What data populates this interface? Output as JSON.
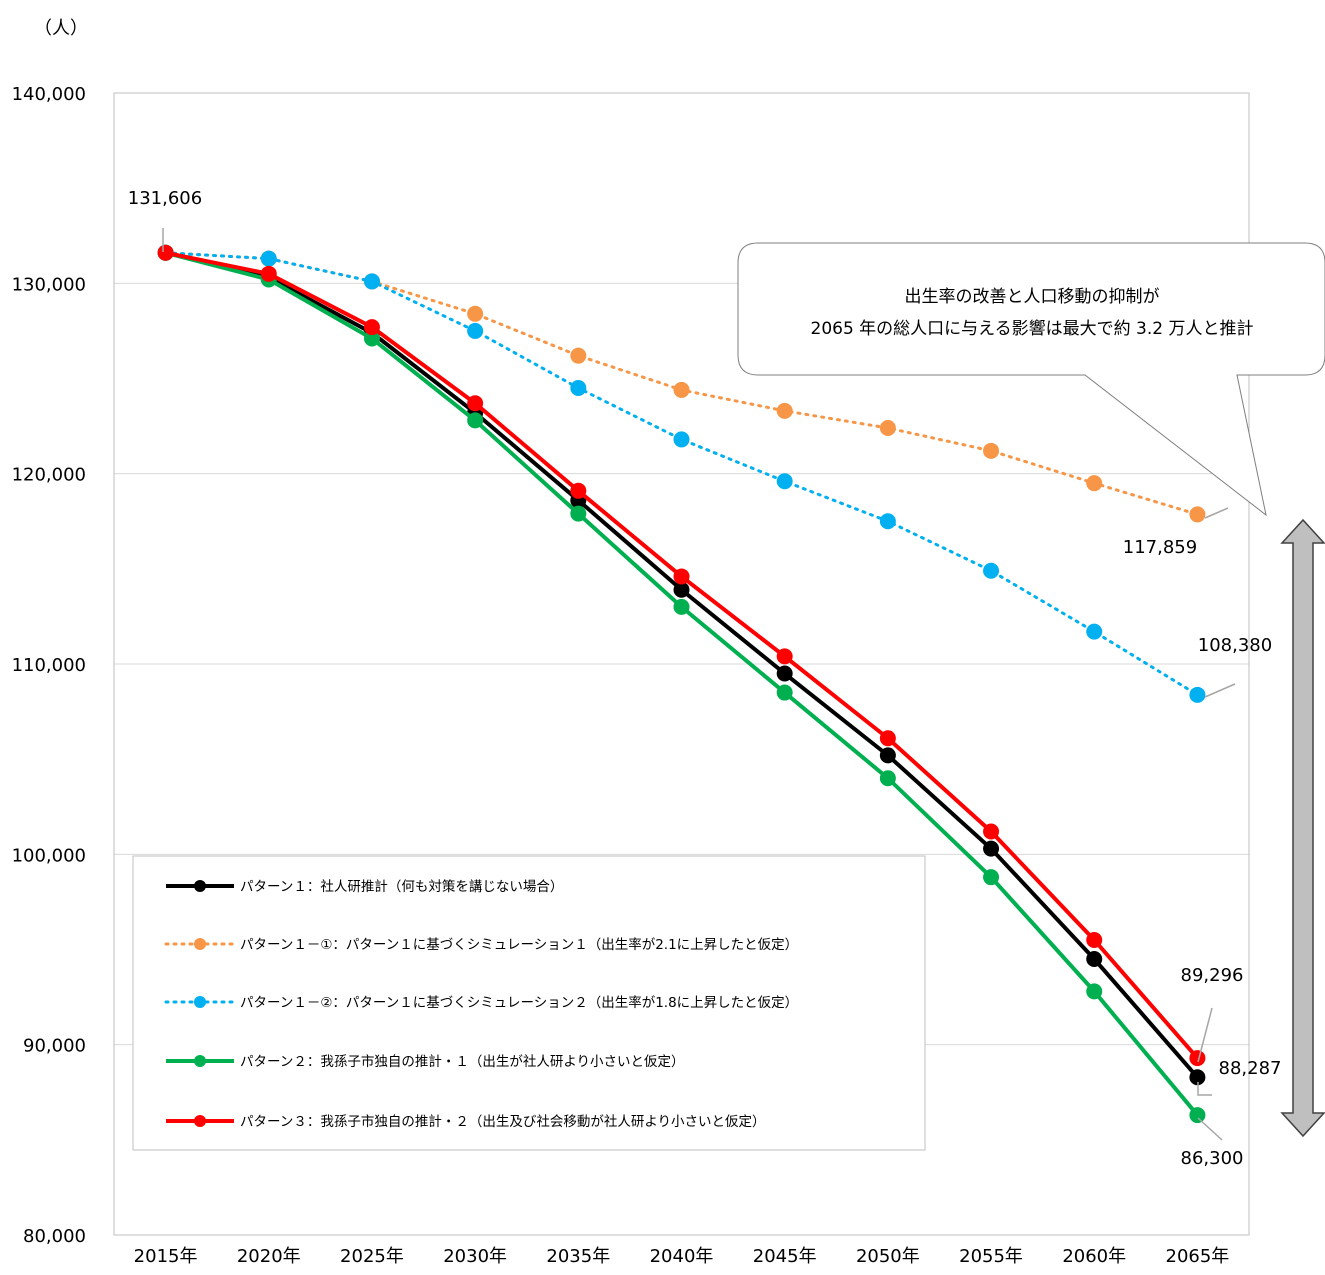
{
  "chart_data": {
    "type": "line",
    "title": "",
    "y_unit": "（人）",
    "categories": [
      "2015年",
      "2020年",
      "2025年",
      "2030年",
      "2035年",
      "2040年",
      "2045年",
      "2050年",
      "2055年",
      "2060年",
      "2065年"
    ],
    "ylim": [
      80000,
      140000
    ],
    "yticks": [
      80000,
      90000,
      100000,
      110000,
      120000,
      130000,
      140000
    ],
    "ytick_labels": [
      "80,000",
      "90,000",
      "100,000",
      "110,000",
      "120,000",
      "130,000",
      "140,000"
    ],
    "grid": true,
    "series": [
      {
        "name": "パターン１：社人研推計（何も対策を講じない場合）",
        "color": "#000000",
        "style": "solid",
        "values": [
          131606,
          130300,
          127400,
          123200,
          118600,
          113900,
          109500,
          105200,
          100300,
          94500,
          88287
        ]
      },
      {
        "name": "パターン１－①：パターン１に基づくシミュレーション１（出生率が2.1に上昇したと仮定）",
        "color": "#F79646",
        "style": "dotted",
        "values": [
          131606,
          131300,
          130100,
          128400,
          126200,
          124400,
          123300,
          122400,
          121200,
          119500,
          117859
        ]
      },
      {
        "name": "パターン１－②：パターン１に基づくシミュレーション２（出生率が1.8に上昇したと仮定）",
        "color": "#00B0F0",
        "style": "dotted",
        "values": [
          131606,
          131300,
          130100,
          127500,
          124500,
          121800,
          119600,
          117500,
          114900,
          111700,
          108380
        ]
      },
      {
        "name": "パターン２：我孫子市独自の推計・１（出生が社人研より小さいと仮定）",
        "color": "#00B050",
        "style": "solid",
        "values": [
          131606,
          130200,
          127100,
          122800,
          117900,
          113000,
          108500,
          104000,
          98800,
          92800,
          86300
        ]
      },
      {
        "name": "パターン３：我孫子市独自の推計・２（出生及び社会移動が社人研より小さいと仮定）",
        "color": "#FF0000",
        "style": "solid",
        "values": [
          131606,
          130500,
          127700,
          123700,
          119100,
          114600,
          110400,
          106100,
          101200,
          95500,
          89296
        ]
      }
    ],
    "annotations": [
      {
        "text": "131,606",
        "value": 131606
      },
      {
        "text": "117,859",
        "value": 117859
      },
      {
        "text": "108,380",
        "value": 108380
      },
      {
        "text": "89,296",
        "value": 89296
      },
      {
        "text": "88,287",
        "value": 88287
      },
      {
        "text": "86,300",
        "value": 86300
      }
    ],
    "callout": {
      "line1": "出生率の改善と人口移動の抑制が",
      "line2": "2065 年の総人口に与える影響は最大で約 3.2 万人と推計"
    },
    "legend_position": "bottom-left"
  }
}
